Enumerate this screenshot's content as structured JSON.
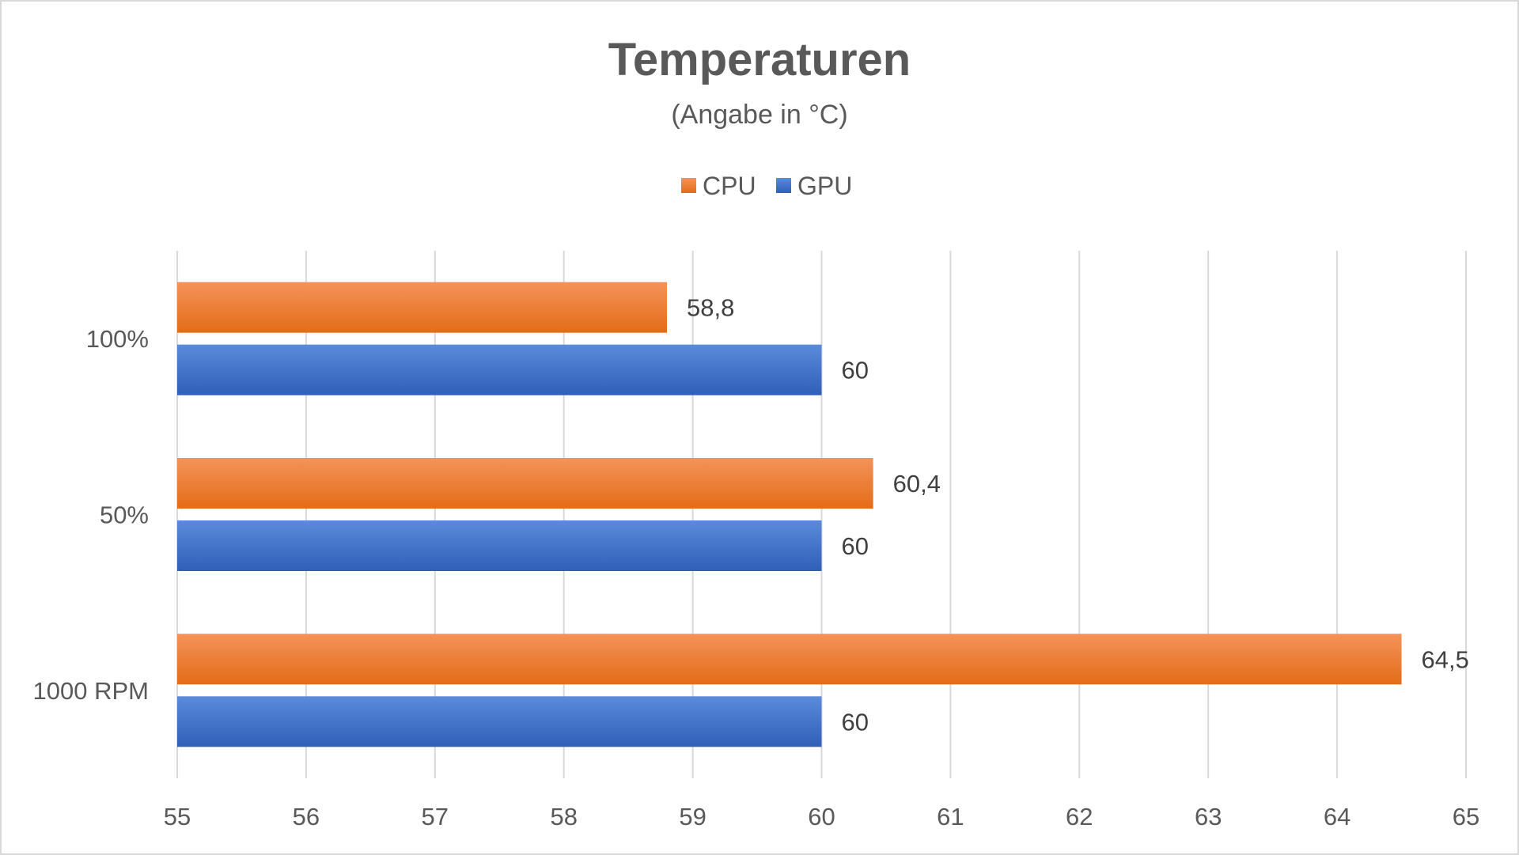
{
  "chart_data": {
    "type": "bar",
    "orientation": "horizontal",
    "title": "Temperaturen",
    "subtitle": "(Angabe in °C)",
    "categories": [
      "100%",
      "50%",
      "1000 RPM"
    ],
    "series": [
      {
        "name": "CPU",
        "color": "#ED7D31",
        "values": [
          58.8,
          60.4,
          64.5
        ],
        "labels": [
          "58,8",
          "60,4",
          "64,5"
        ]
      },
      {
        "name": "GPU",
        "color": "#4472C4",
        "values": [
          60,
          60,
          60
        ],
        "labels": [
          "60",
          "60",
          "60"
        ]
      }
    ],
    "xlim": [
      55,
      65
    ],
    "xticks": [
      "55",
      "56",
      "57",
      "58",
      "59",
      "60",
      "61",
      "62",
      "63",
      "64",
      "65"
    ],
    "xlabel": "",
    "ylabel": "",
    "grid": "vertical",
    "legend": "top-center"
  }
}
